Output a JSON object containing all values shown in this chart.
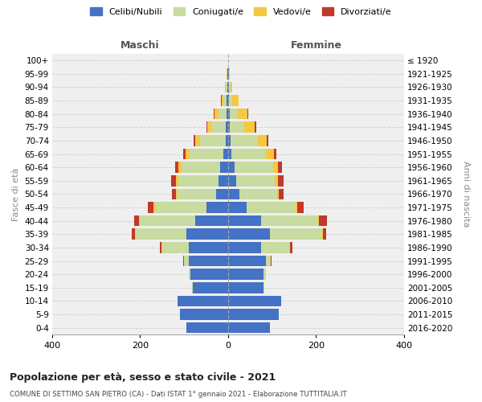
{
  "age_groups": [
    "0-4",
    "5-9",
    "10-14",
    "15-19",
    "20-24",
    "25-29",
    "30-34",
    "35-39",
    "40-44",
    "45-49",
    "50-54",
    "55-59",
    "60-64",
    "65-69",
    "70-74",
    "75-79",
    "80-84",
    "85-89",
    "90-94",
    "95-99",
    "100+"
  ],
  "birth_years": [
    "2016-2020",
    "2011-2015",
    "2006-2010",
    "2001-2005",
    "1996-2000",
    "1991-1995",
    "1986-1990",
    "1981-1985",
    "1976-1980",
    "1971-1975",
    "1966-1970",
    "1961-1965",
    "1956-1960",
    "1951-1955",
    "1946-1950",
    "1941-1945",
    "1936-1940",
    "1931-1935",
    "1926-1930",
    "1921-1925",
    "≤ 1920"
  ],
  "males": {
    "celibi": [
      95,
      110,
      115,
      80,
      85,
      90,
      90,
      95,
      75,
      50,
      28,
      22,
      18,
      10,
      6,
      5,
      4,
      3,
      2,
      1,
      0
    ],
    "coniugati": [
      0,
      0,
      0,
      2,
      5,
      10,
      60,
      115,
      125,
      115,
      88,
      92,
      88,
      78,
      58,
      33,
      18,
      7,
      4,
      1,
      0
    ],
    "vedovi": [
      0,
      0,
      0,
      0,
      0,
      0,
      1,
      2,
      3,
      5,
      3,
      5,
      7,
      9,
      10,
      9,
      9,
      5,
      2,
      1,
      0
    ],
    "divorziati": [
      0,
      0,
      0,
      0,
      0,
      2,
      4,
      8,
      10,
      12,
      8,
      10,
      8,
      6,
      5,
      3,
      2,
      1,
      0,
      0,
      0
    ]
  },
  "females": {
    "nubili": [
      95,
      115,
      120,
      80,
      80,
      85,
      75,
      95,
      75,
      42,
      26,
      18,
      14,
      8,
      5,
      4,
      3,
      2,
      2,
      1,
      0
    ],
    "coniugate": [
      0,
      0,
      0,
      2,
      5,
      12,
      65,
      118,
      130,
      112,
      85,
      88,
      88,
      78,
      62,
      33,
      17,
      7,
      3,
      1,
      0
    ],
    "vedove": [
      0,
      0,
      0,
      0,
      0,
      0,
      1,
      2,
      2,
      3,
      5,
      8,
      12,
      18,
      20,
      24,
      24,
      15,
      5,
      2,
      0
    ],
    "divorziate": [
      0,
      0,
      0,
      0,
      0,
      2,
      5,
      8,
      18,
      15,
      10,
      12,
      8,
      5,
      5,
      3,
      1,
      0,
      0,
      0,
      0
    ]
  },
  "colors": {
    "celibi_nubili": "#4472C4",
    "coniugati": "#c8dba0",
    "vedovi": "#f5c842",
    "divorziati": "#c0392b"
  },
  "title": "Popolazione per età, sesso e stato civile - 2021",
  "subtitle": "COMUNE DI SETTIMO SAN PIETRO (CA) - Dati ISTAT 1° gennaio 2021 - Elaborazione TUTTITALIA.IT",
  "xlabel_left": "Maschi",
  "xlabel_right": "Femmine",
  "ylabel_left": "Fasce di età",
  "ylabel_right": "Anni di nascita",
  "xlim": 400,
  "legend_labels": [
    "Celibi/Nubili",
    "Coniugati/e",
    "Vedovi/e",
    "Divorziati/e"
  ],
  "background_color": "#efefef"
}
